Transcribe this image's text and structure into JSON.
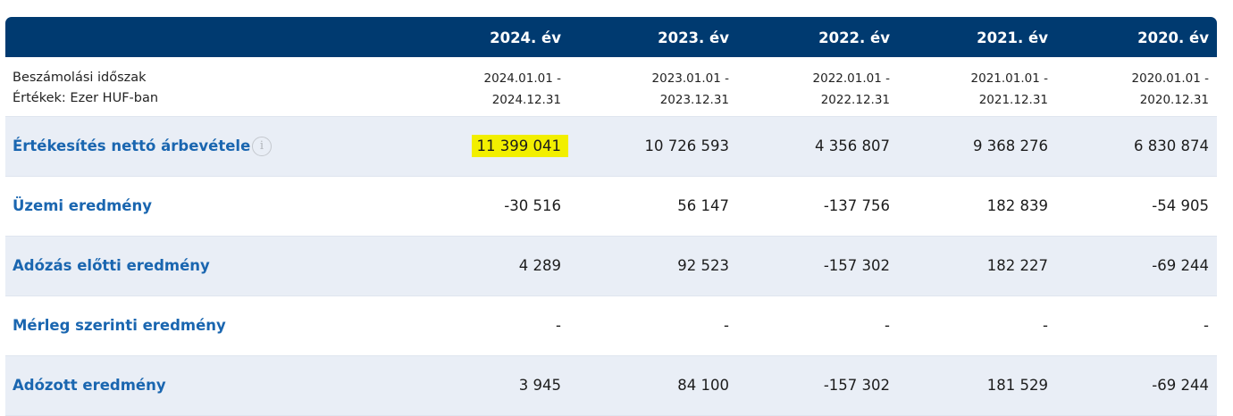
{
  "years": [
    "2024. év",
    "2023. év",
    "2022. év",
    "2021. év",
    "2020. év"
  ],
  "period_row": {
    "label_line1": "Beszámolási időszak",
    "label_line2": "Értékek: Ezer HUF-ban",
    "cells": [
      {
        "start": "2024.01.01 -",
        "end": "2024.12.31"
      },
      {
        "start": "2023.01.01 -",
        "end": "2023.12.31"
      },
      {
        "start": "2022.01.01 -",
        "end": "2022.12.31"
      },
      {
        "start": "2021.01.01 -",
        "end": "2021.12.31"
      },
      {
        "start": "2020.01.01 -",
        "end": "2020.12.31"
      }
    ]
  },
  "rows": [
    {
      "label": "Értékesítés nettó árbevétele",
      "values": [
        "11 399 041",
        "10 726 593",
        "4 356 807",
        "9 368 276",
        "6 830 874"
      ]
    },
    {
      "label": "Üzemi eredmény",
      "values": [
        "-30 516",
        "56 147",
        "-137 756",
        "182 839",
        "-54 905"
      ]
    },
    {
      "label": "Adózás előtti eredmény",
      "values": [
        "4 289",
        "92 523",
        "-157 302",
        "182 227",
        "-69 244"
      ]
    },
    {
      "label": "Mérleg szerinti eredmény",
      "values": [
        "-",
        "-",
        "-",
        "-",
        "-"
      ]
    },
    {
      "label": "Adózott eredmény",
      "values": [
        "3 945",
        "84 100",
        "-157 302",
        "181 529",
        "-69 244"
      ]
    }
  ],
  "info_icon": {
    "name": "info-icon",
    "glyph": "i"
  },
  "colors": {
    "header_bg": "#003a70",
    "label_blue": "#1a66b0",
    "shade_row": "#e9eef6",
    "highlight": "#f2ef00"
  }
}
